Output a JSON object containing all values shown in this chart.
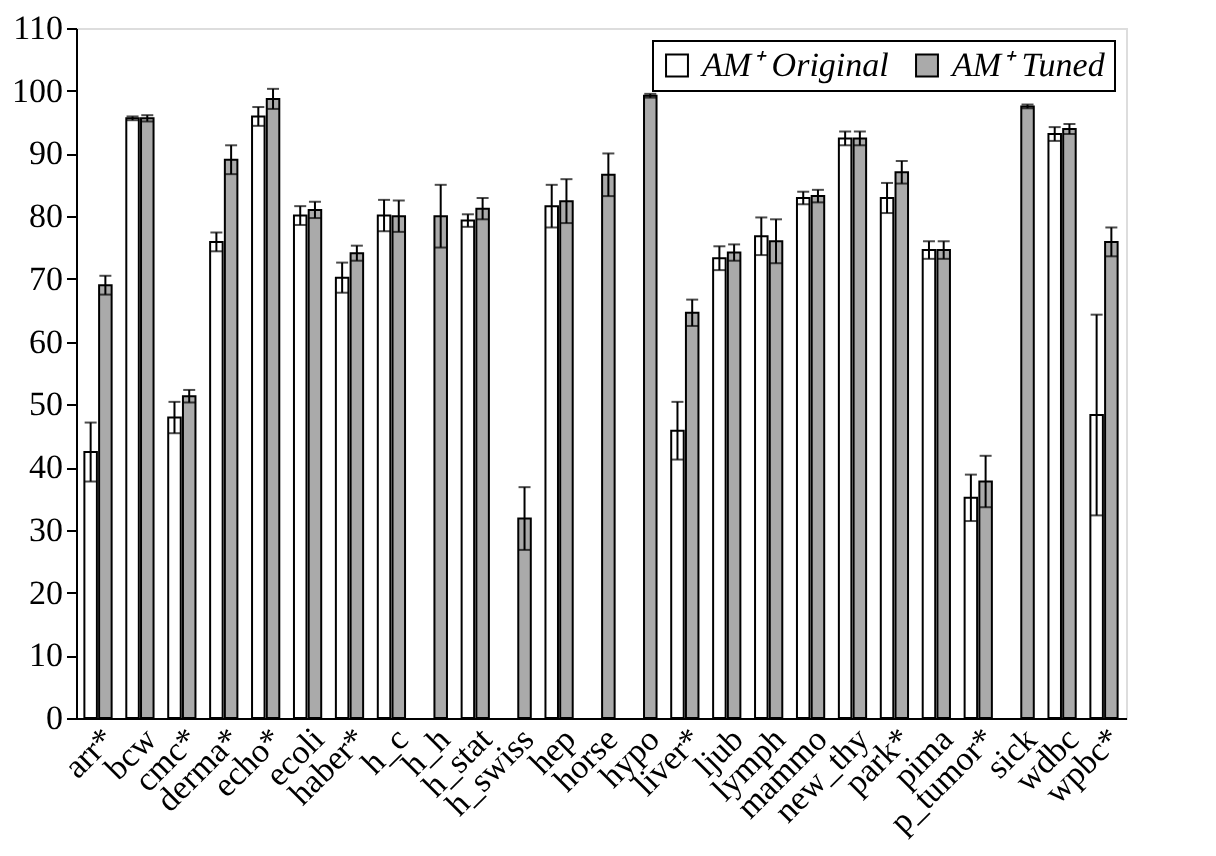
{
  "chart_data": {
    "type": "bar",
    "categories": [
      "arr*",
      "bcw",
      "cmc*",
      "derma*",
      "echo*",
      "ecoli",
      "haber*",
      "h_c",
      "h_h",
      "h_stat",
      "h_swiss",
      "hep",
      "horse",
      "hypo",
      "liver*",
      "ljub",
      "lymph",
      "mammo",
      "new_thy",
      "park*",
      "pima",
      "p_tumor*",
      "sick",
      "wdbc",
      "wpbc*"
    ],
    "series": [
      {
        "name": "AM⁺ Original",
        "color": "#ffffff",
        "values": [
          42.4,
          95.6,
          47.9,
          75.9,
          95.9,
          80.1,
          70.2,
          80.1,
          null,
          79.3,
          null,
          81.6,
          null,
          null,
          45.8,
          73.3,
          76.8,
          82.9,
          92.4,
          82.9,
          74.6,
          35.1,
          null,
          93.1,
          48.3
        ],
        "errors": [
          4.7,
          0.3,
          2.5,
          1.5,
          1.5,
          1.5,
          2.4,
          2.5,
          null,
          1,
          null,
          3.4,
          null,
          null,
          4.6,
          1.9,
          3,
          1,
          1.1,
          2.4,
          1.4,
          3.7,
          null,
          1.1,
          16
        ]
      },
      {
        "name": "AM⁺ Tuned",
        "color": "#aaaaaa",
        "values": [
          69,
          95.6,
          51.3,
          89,
          98.7,
          81,
          74.1,
          80,
          80,
          81.2,
          31.8,
          82.4,
          86.6,
          99.2,
          64.6,
          74.2,
          76,
          83.2,
          92.4,
          87,
          74.6,
          37.7,
          97.5,
          93.9,
          75.9
        ],
        "errors": [
          1.5,
          0.5,
          1,
          2.3,
          1.6,
          1.3,
          1.2,
          2.5,
          5,
          1.7,
          5,
          3.5,
          3.4,
          0.3,
          2.1,
          1.3,
          3.5,
          1,
          1.1,
          1.8,
          1.4,
          4.1,
          0.3,
          0.8,
          2.3
        ]
      }
    ],
    "ylim": [
      0,
      110
    ],
    "yticks": [
      0,
      10,
      20,
      30,
      40,
      50,
      60,
      70,
      80,
      90,
      100,
      110
    ],
    "grid": false,
    "legend": "top right"
  }
}
